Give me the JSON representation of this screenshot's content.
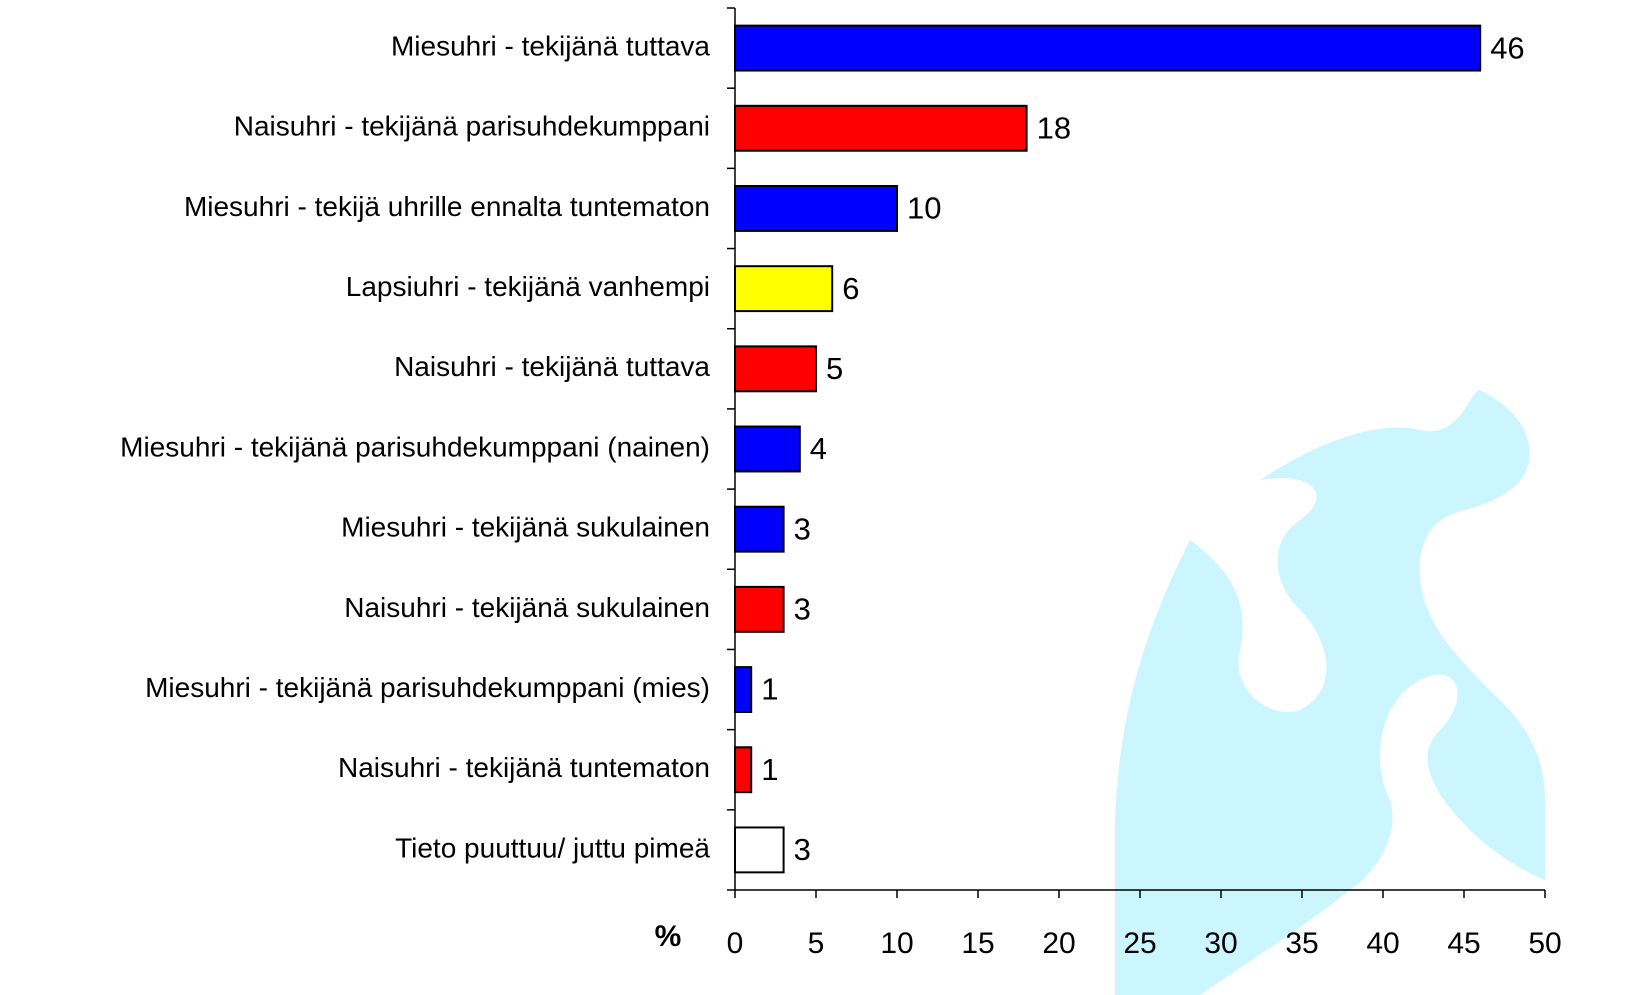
{
  "chart_data": {
    "type": "barh",
    "categories": [
      "Miesuhri - tekijänä tuttava",
      "Naisuhri - tekijänä parisuhdekumppani",
      "Miesuhri - tekijä uhrille ennalta tuntematon",
      "Lapsiuhri - tekijänä vanhempi",
      "Naisuhri - tekijänä tuttava",
      "Miesuhri - tekijänä parisuhdekumppani (nainen)",
      "Miesuhri - tekijänä sukulainen",
      "Naisuhri - tekijänä sukulainen",
      "Miesuhri - tekijänä parisuhdekumppani (mies)",
      "Naisuhri - tekijänä tuntematon",
      "Tieto puuttuu/ juttu pimeä"
    ],
    "values": [
      46,
      18,
      10,
      6,
      5,
      4,
      3,
      3,
      1,
      1,
      3
    ],
    "colors": [
      "#0000ff",
      "#ff0000",
      "#0000ff",
      "#ffff00",
      "#ff0000",
      "#0000ff",
      "#0000ff",
      "#ff0000",
      "#0000ff",
      "#ff0000",
      "#ffffff"
    ],
    "x_label": "%",
    "xlim": [
      0,
      50
    ],
    "xticks": [
      0,
      5,
      10,
      15,
      20,
      25,
      30,
      35,
      40,
      45,
      50
    ]
  }
}
